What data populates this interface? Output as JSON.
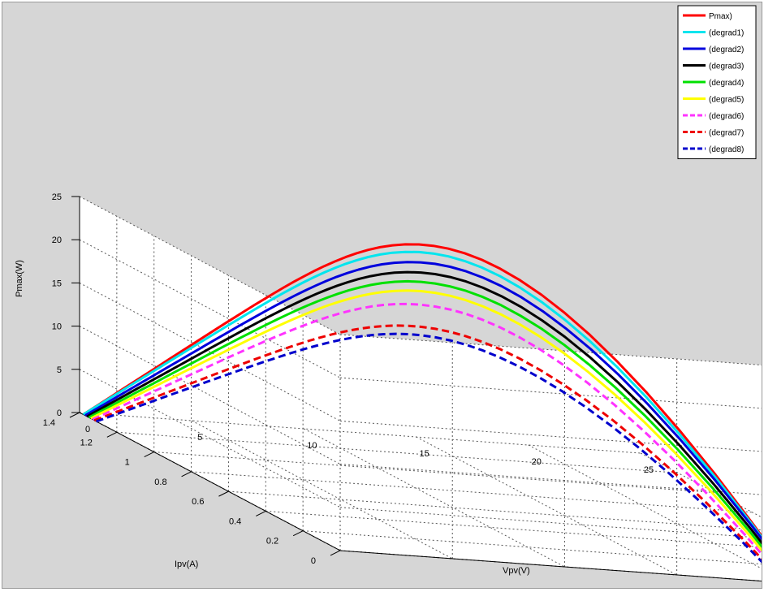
{
  "chart_data": {
    "type": "line",
    "projection": "3d",
    "xlabel": "Vpv(V)",
    "ylabel": "Ipv(A)",
    "zlabel": "Pmax(W)",
    "xlim": [
      0,
      25
    ],
    "ylim": [
      0,
      1.4
    ],
    "zlim": [
      0,
      25
    ],
    "x_ticks": [
      "0",
      "5",
      "10",
      "15",
      "20",
      "25"
    ],
    "y_ticks": [
      "0",
      "0.2",
      "0.4",
      "0.6",
      "0.8",
      "1",
      "1.2",
      "1.4"
    ],
    "z_ticks": [
      "0",
      "5",
      "10",
      "15",
      "20",
      "25"
    ],
    "grid": true,
    "legend_position": "top-right",
    "series": [
      {
        "name": "Pmax)",
        "color": "#ff0000",
        "style": "solid",
        "isc": 1.38,
        "voc": 20.3,
        "peak": 24.0
      },
      {
        "name": "(degrad1)",
        "color": "#00e5ee",
        "style": "solid",
        "isc": 1.38,
        "voc": 20.3,
        "peak": 23.1
      },
      {
        "name": "(degrad2)",
        "color": "#0000dd",
        "style": "solid",
        "isc": 1.37,
        "voc": 20.3,
        "peak": 22.0
      },
      {
        "name": "(degrad3)",
        "color": "#000000",
        "style": "solid",
        "isc": 1.36,
        "voc": 20.2,
        "peak": 20.9
      },
      {
        "name": "(degrad4)",
        "color": "#00e000",
        "style": "solid",
        "isc": 1.35,
        "voc": 20.1,
        "peak": 19.9
      },
      {
        "name": "(degrad5)",
        "color": "#ffff00",
        "style": "solid",
        "isc": 1.34,
        "voc": 20.0,
        "peak": 18.9
      },
      {
        "name": "(degrad6)",
        "color": "#ff33ff",
        "style": "dashed",
        "isc": 1.33,
        "voc": 19.9,
        "peak": 17.4
      },
      {
        "name": "(degrad7)",
        "color": "#ee0000",
        "style": "dashed",
        "isc": 1.32,
        "voc": 19.8,
        "peak": 14.9
      },
      {
        "name": "(degrad8)",
        "color": "#0000cc",
        "style": "dashed",
        "isc": 1.31,
        "voc": 19.7,
        "peak": 14.0
      }
    ]
  }
}
